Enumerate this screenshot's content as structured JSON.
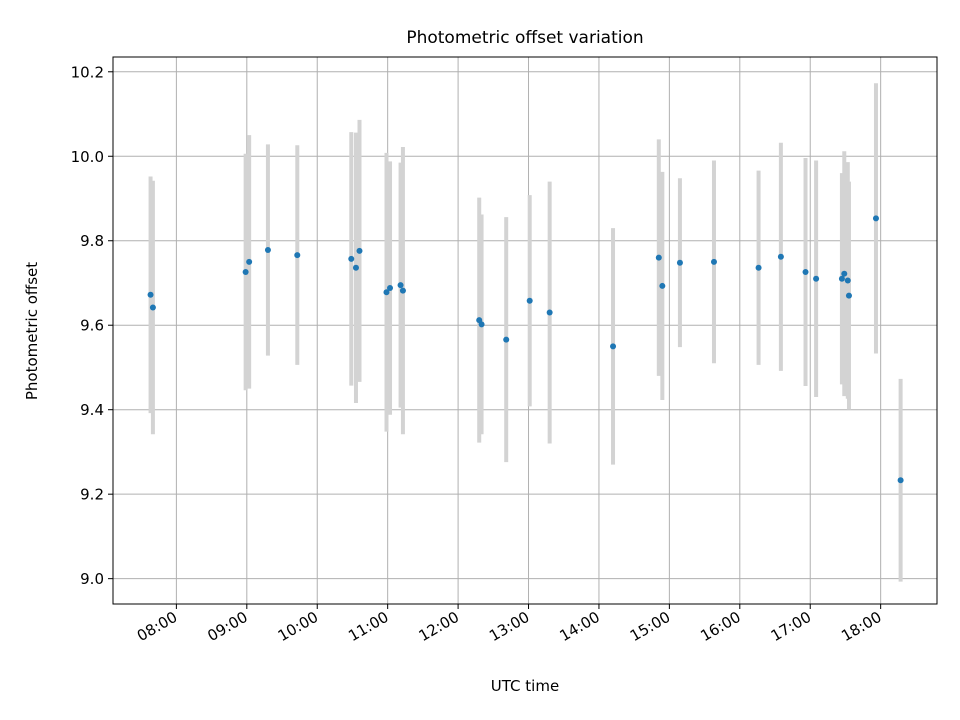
{
  "chart_data": {
    "type": "scatter",
    "title": "Photometric offset variation",
    "xlabel": "UTC time",
    "ylabel": "Photometric offset",
    "x_tick_labels": [
      "08:00",
      "09:00",
      "10:00",
      "11:00",
      "12:00",
      "13:00",
      "14:00",
      "15:00",
      "16:00",
      "17:00",
      "18:00"
    ],
    "y_tick_labels": [
      "9.0",
      "9.2",
      "9.4",
      "9.6",
      "9.8",
      "10.0",
      "10.2"
    ],
    "x_ticks": [
      "08:00",
      "09:00",
      "10:00",
      "11:00",
      "12:00",
      "13:00",
      "14:00",
      "15:00",
      "16:00",
      "17:00",
      "18:00"
    ],
    "y_ticks": [
      9.0,
      9.2,
      9.4,
      9.6,
      9.8,
      10.0,
      10.2
    ],
    "xlim": [
      "07:06",
      "18:48"
    ],
    "ylim": [
      8.94,
      10.235
    ],
    "grid": true,
    "colors": {
      "point": "#1f77b4",
      "errorbar": "#d3d3d3",
      "grid": "#b0b0b0"
    },
    "points": [
      {
        "t": "07:38",
        "y": 9.672,
        "err": 0.28
      },
      {
        "t": "07:40",
        "y": 9.642,
        "err": 0.3
      },
      {
        "t": "08:59",
        "y": 9.726,
        "err": 0.28
      },
      {
        "t": "09:02",
        "y": 9.75,
        "err": 0.3
      },
      {
        "t": "09:18",
        "y": 9.778,
        "err": 0.25
      },
      {
        "t": "09:43",
        "y": 9.766,
        "err": 0.26
      },
      {
        "t": "10:29",
        "y": 9.757,
        "err": 0.3
      },
      {
        "t": "10:33",
        "y": 9.736,
        "err": 0.32
      },
      {
        "t": "10:36",
        "y": 9.776,
        "err": 0.31
      },
      {
        "t": "10:59",
        "y": 9.678,
        "err": 0.33
      },
      {
        "t": "11:02",
        "y": 9.688,
        "err": 0.3
      },
      {
        "t": "11:11",
        "y": 9.695,
        "err": 0.29
      },
      {
        "t": "11:13",
        "y": 9.682,
        "err": 0.34
      },
      {
        "t": "12:18",
        "y": 9.612,
        "err": 0.29
      },
      {
        "t": "12:20",
        "y": 9.602,
        "err": 0.26
      },
      {
        "t": "12:41",
        "y": 9.566,
        "err": 0.29
      },
      {
        "t": "13:01",
        "y": 9.658,
        "err": 0.25
      },
      {
        "t": "13:18",
        "y": 9.63,
        "err": 0.31
      },
      {
        "t": "14:12",
        "y": 9.55,
        "err": 0.28
      },
      {
        "t": "14:51",
        "y": 9.76,
        "err": 0.28
      },
      {
        "t": "14:54",
        "y": 9.693,
        "err": 0.27
      },
      {
        "t": "15:09",
        "y": 9.748,
        "err": 0.2
      },
      {
        "t": "15:38",
        "y": 9.75,
        "err": 0.24
      },
      {
        "t": "16:16",
        "y": 9.736,
        "err": 0.23
      },
      {
        "t": "16:35",
        "y": 9.762,
        "err": 0.27
      },
      {
        "t": "16:56",
        "y": 9.726,
        "err": 0.27
      },
      {
        "t": "17:05",
        "y": 9.71,
        "err": 0.28
      },
      {
        "t": "17:27",
        "y": 9.71,
        "err": 0.25
      },
      {
        "t": "17:29",
        "y": 9.722,
        "err": 0.29
      },
      {
        "t": "17:32",
        "y": 9.706,
        "err": 0.28
      },
      {
        "t": "17:33",
        "y": 9.67,
        "err": 0.27
      },
      {
        "t": "17:56",
        "y": 9.853,
        "err": 0.32
      },
      {
        "t": "18:17",
        "y": 9.233,
        "err": 0.24
      }
    ]
  }
}
